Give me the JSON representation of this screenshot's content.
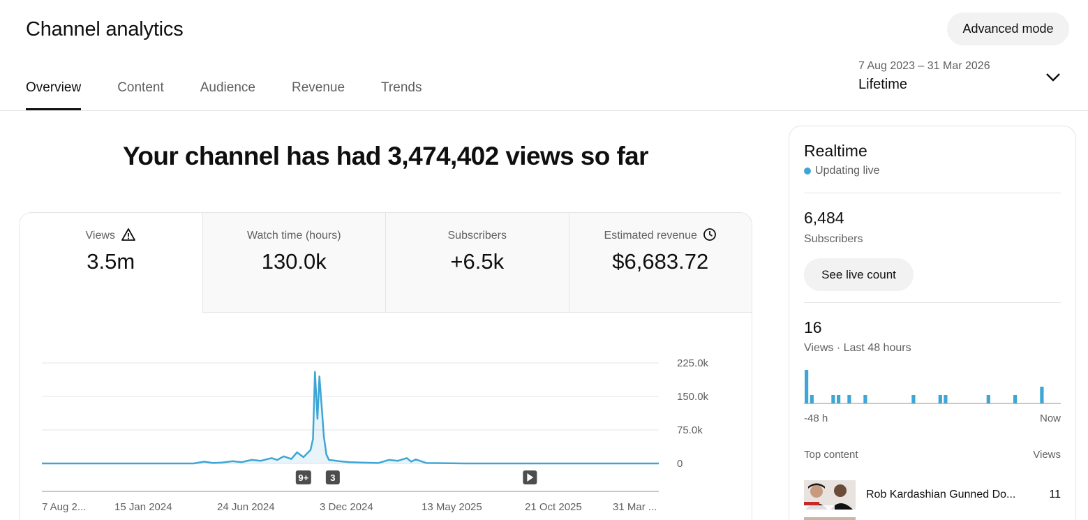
{
  "page": {
    "title": "Channel analytics",
    "advanced_mode": "Advanced mode",
    "tabs": [
      "Overview",
      "Content",
      "Audience",
      "Revenue",
      "Trends"
    ],
    "active_tab": "Overview",
    "date_range": {
      "dates": "7 Aug 2023 – 31 Mar 2026",
      "label": "Lifetime"
    }
  },
  "overview": {
    "headline": "Your channel has had 3,474,402 views so far",
    "metrics": [
      {
        "label": "Views",
        "value": "3.5m",
        "icon": "warning-icon"
      },
      {
        "label": "Watch time (hours)",
        "value": "130.0k",
        "icon": ""
      },
      {
        "label": "Subscribers",
        "value": "+6.5k",
        "icon": ""
      },
      {
        "label": "Estimated revenue",
        "value": "$6,683.72",
        "icon": "clock-icon"
      }
    ]
  },
  "chart_data": {
    "type": "line",
    "title": "",
    "xlabel": "",
    "ylabel": "",
    "x_tick_labels": [
      "7 Aug 2...",
      "15 Jan 2024",
      "24 Jun 2024",
      "3 Dec 2024",
      "13 May 2025",
      "21 Oct 2025",
      "31 Mar ..."
    ],
    "y_tick_labels": [
      "225.0k",
      "150.0k",
      "75.0k",
      "0"
    ],
    "y_ticks": [
      225000,
      150000,
      75000,
      0
    ],
    "ylim": [
      0,
      225000
    ],
    "xlim": [
      "2023-08-07",
      "2026-03-31"
    ],
    "grid": true,
    "color": "#3ea6d5",
    "series": [
      {
        "x": [
          "2023-08-07",
          "2024-02-01",
          "2024-04-01",
          "2024-04-18",
          "2024-05-01",
          "2024-05-15",
          "2024-06-01",
          "2024-06-15",
          "2024-07-01",
          "2024-07-15",
          "2024-08-01",
          "2024-08-10",
          "2024-08-20",
          "2024-09-01",
          "2024-09-10",
          "2024-09-20",
          "2024-10-01",
          "2024-10-05",
          "2024-10-08",
          "2024-10-12",
          "2024-10-15",
          "2024-10-19",
          "2024-10-22",
          "2024-10-26",
          "2024-10-30",
          "2024-11-05",
          "2024-11-15",
          "2024-12-01",
          "2024-12-20",
          "2025-01-15",
          "2025-02-01",
          "2025-02-15",
          "2025-03-01",
          "2025-03-08",
          "2025-03-15",
          "2025-04-01",
          "2025-06-01",
          "2025-10-01",
          "2026-03-31"
        ],
        "y": [
          0,
          0,
          0,
          4000,
          1000,
          2000,
          5000,
          3000,
          8000,
          6000,
          12000,
          8000,
          16000,
          10000,
          25000,
          14000,
          30000,
          55000,
          205000,
          100000,
          195000,
          120000,
          60000,
          20000,
          8000,
          7000,
          5000,
          3000,
          2000,
          1000,
          8000,
          6000,
          12000,
          4000,
          9000,
          1000,
          0,
          0,
          0
        ]
      }
    ],
    "markers": [
      {
        "label": "9+",
        "x": "2024-09-20"
      },
      {
        "label": "3",
        "x": "2024-11-05"
      },
      {
        "label": "",
        "icon": "play-icon",
        "x": "2025-09-10"
      }
    ]
  },
  "realtime": {
    "title": "Realtime",
    "status": "Updating live",
    "status_color": "#3ea6d5",
    "subscribers_value": "6,484",
    "subscribers_label": "Subscribers",
    "live_count_button": "See live count",
    "views_value": "16",
    "views_label": "Views · Last 48 hours",
    "axis_start": "-48 h",
    "axis_end": "Now",
    "hourly_views": [
      4,
      1,
      0,
      0,
      0,
      1,
      1,
      0,
      1,
      0,
      0,
      1,
      0,
      0,
      0,
      0,
      0,
      0,
      0,
      0,
      1,
      0,
      0,
      0,
      0,
      1,
      1,
      0,
      0,
      0,
      0,
      0,
      0,
      0,
      1,
      0,
      0,
      0,
      0,
      1,
      0,
      0,
      0,
      0,
      2,
      0,
      0,
      0
    ],
    "top_content_label": "Top content",
    "views_column_label": "Views",
    "top_content": [
      {
        "title": "Rob Kardashian Gunned Do...",
        "views": "11"
      }
    ]
  }
}
